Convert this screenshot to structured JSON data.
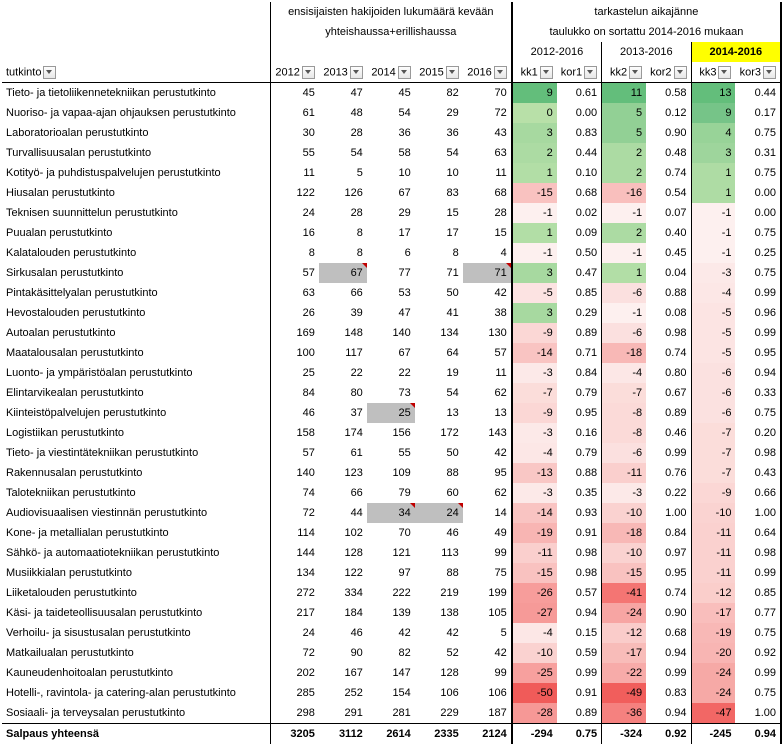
{
  "headerGroup1": "ensisijaisten hakijoiden lukumäärä kevään yhteishaussa+erillishaussa",
  "headerGroup2a": "tarkastelun aikajänne",
  "headerGroup2b": "taulukko on sortattu 2014-2016 mukaan",
  "periods": [
    "2012-2016",
    "2013-2016",
    "2014-2016"
  ],
  "colTutkinto": "tutkinto",
  "years": [
    "2012",
    "2013",
    "2014",
    "2015",
    "2016"
  ],
  "kkLabels": [
    "kk1",
    "kor1",
    "kk2",
    "kor2",
    "kk3",
    "kor3"
  ],
  "totalLabel": "Salpaus yhteensä",
  "totalYears": [
    "3205",
    "3112",
    "2614",
    "2335",
    "2124"
  ],
  "totalKK": [
    "-294",
    "0.75",
    "-324",
    "0.92",
    "-245",
    "0.94"
  ],
  "rows": [
    {
      "name": "Tieto- ja tietoliikennetekniikan perustutkinto",
      "y": [
        "45",
        "47",
        "45",
        "82",
        "70"
      ],
      "kk": [
        "9",
        "0.61",
        "11",
        "0.58",
        "13",
        "0.44"
      ],
      "bg": [
        "#63be7b",
        "",
        "#63be7b",
        "",
        "#63be7b",
        ""
      ]
    },
    {
      "name": "Nuoriso- ja vapaa-ajan ohjauksen perustutkinto",
      "y": [
        "61",
        "48",
        "54",
        "29",
        "72"
      ],
      "kk": [
        "0",
        "0.00",
        "5",
        "0.12",
        "9",
        "0.17"
      ],
      "bg": [
        "#b8e0a8",
        "",
        "#92d095",
        "",
        "#76c488",
        ""
      ]
    },
    {
      "name": "Laboratorioalan perustutkinto",
      "y": [
        "30",
        "28",
        "36",
        "36",
        "43"
      ],
      "kk": [
        "3",
        "0.83",
        "5",
        "0.90",
        "4",
        "0.75"
      ],
      "bg": [
        "#a7d9a0",
        "",
        "#92d095",
        "",
        "#98d398",
        ""
      ]
    },
    {
      "name": "Turvallisuusalan perustutkinto",
      "y": [
        "55",
        "54",
        "58",
        "54",
        "63"
      ],
      "kk": [
        "2",
        "0.44",
        "2",
        "0.48",
        "3",
        "0.31"
      ],
      "bg": [
        "#acdba3",
        "",
        "#acdba3",
        "",
        "#9ed59c",
        ""
      ]
    },
    {
      "name": "Kotityö- ja puhdistuspalvelujen perustutkinto",
      "y": [
        "11",
        "5",
        "10",
        "10",
        "11"
      ],
      "kk": [
        "1",
        "0.10",
        "2",
        "0.74",
        "1",
        "0.75"
      ],
      "bg": [
        "#b2dea6",
        "",
        "#acdba3",
        "",
        "#aedca4",
        ""
      ]
    },
    {
      "name": "Hiusalan perustutkinto",
      "y": [
        "122",
        "126",
        "67",
        "83",
        "68"
      ],
      "kk": [
        "-15",
        "0.68",
        "-16",
        "0.54",
        "1",
        "0.00"
      ],
      "bg": [
        "#f9c2c0",
        "",
        "#f9bfbd",
        "",
        "#aedca4",
        ""
      ]
    },
    {
      "name": "Teknisen suunnittelun perustutkinto",
      "y": [
        "24",
        "28",
        "29",
        "15",
        "28"
      ],
      "kk": [
        "-1",
        "0.02",
        "-1",
        "0.07",
        "-1",
        "0.00"
      ],
      "bg": [
        "#fdf0ef",
        "",
        "#fdf0ef",
        "",
        "#fdf0ef",
        ""
      ]
    },
    {
      "name": "Puualan perustutkinto",
      "y": [
        "16",
        "8",
        "17",
        "17",
        "15"
      ],
      "kk": [
        "1",
        "0.09",
        "2",
        "0.40",
        "-1",
        "0.75"
      ],
      "bg": [
        "#b2dea6",
        "",
        "#acdba3",
        "",
        "#fdf0ef",
        ""
      ]
    },
    {
      "name": "Kalatalouden perustutkinto",
      "y": [
        "8",
        "8",
        "6",
        "8",
        "4"
      ],
      "kk": [
        "-1",
        "0.50",
        "-1",
        "0.45",
        "-1",
        "0.25"
      ],
      "bg": [
        "#fdf0ef",
        "",
        "#fdf0ef",
        "",
        "#fdf0ef",
        ""
      ]
    },
    {
      "name": "Sirkusalan perustutkinto",
      "y": [
        "57",
        "67",
        "77",
        "71",
        "71"
      ],
      "kk": [
        "3",
        "0.47",
        "1",
        "0.04",
        "-3",
        "0.75"
      ],
      "bg": [
        "#a7d9a0",
        "",
        "#b2dea6",
        "",
        "#fce9e8",
        ""
      ],
      "gray": [
        1,
        4
      ]
    },
    {
      "name": "Pintakäsittelyalan perustutkinto",
      "y": [
        "63",
        "66",
        "53",
        "50",
        "42"
      ],
      "kk": [
        "-5",
        "0.85",
        "-6",
        "0.88",
        "-4",
        "0.99"
      ],
      "bg": [
        "#fce3e2",
        "",
        "#fbe0df",
        "",
        "#fce7e6",
        ""
      ]
    },
    {
      "name": "Hevostalouden perustutkinto",
      "y": [
        "26",
        "39",
        "47",
        "41",
        "38"
      ],
      "kk": [
        "3",
        "0.29",
        "-1",
        "0.08",
        "-5",
        "0.96"
      ],
      "bg": [
        "#a7d9a0",
        "",
        "#fdf0ef",
        "",
        "#fce4e3",
        ""
      ]
    },
    {
      "name": "Autoalan perustutkinto",
      "y": [
        "169",
        "148",
        "140",
        "134",
        "130"
      ],
      "kk": [
        "-9",
        "0.89",
        "-6",
        "0.98",
        "-5",
        "0.99"
      ],
      "bg": [
        "#fbd7d5",
        "",
        "#fbe0df",
        "",
        "#fce4e3",
        ""
      ]
    },
    {
      "name": "Maatalousalan perustutkinto",
      "y": [
        "100",
        "117",
        "67",
        "64",
        "57"
      ],
      "kk": [
        "-14",
        "0.71",
        "-18",
        "0.74",
        "-5",
        "0.95"
      ],
      "bg": [
        "#f9c4c2",
        "",
        "#f8b8b6",
        "",
        "#fce4e3",
        ""
      ]
    },
    {
      "name": "Luonto- ja ympäristöalan perustutkinto",
      "y": [
        "25",
        "22",
        "22",
        "19",
        "11"
      ],
      "kk": [
        "-3",
        "0.84",
        "-4",
        "0.80",
        "-6",
        "0.94"
      ],
      "bg": [
        "#fce9e8",
        "",
        "#fce7e6",
        "",
        "#fbe1e0",
        ""
      ]
    },
    {
      "name": "Elintarvikealan perustutkinto",
      "y": [
        "84",
        "80",
        "73",
        "54",
        "62"
      ],
      "kk": [
        "-7",
        "0.79",
        "-7",
        "0.67",
        "-6",
        "0.33"
      ],
      "bg": [
        "#fbddda",
        "",
        "#fbddda",
        "",
        "#fbe1e0",
        ""
      ]
    },
    {
      "name": "Kiinteistöpalvelujen perustutkinto",
      "y": [
        "46",
        "37",
        "25",
        "13",
        "13"
      ],
      "kk": [
        "-9",
        "0.95",
        "-8",
        "0.89",
        "-6",
        "0.75"
      ],
      "bg": [
        "#fbd7d5",
        "",
        "#fbdad8",
        "",
        "#fbe1e0",
        ""
      ],
      "gray": [
        2
      ]
    },
    {
      "name": "Logistiikan perustutkinto",
      "y": [
        "158",
        "174",
        "156",
        "172",
        "143"
      ],
      "kk": [
        "-3",
        "0.16",
        "-8",
        "0.46",
        "-7",
        "0.20"
      ],
      "bg": [
        "#fce9e8",
        "",
        "#fbdad8",
        "",
        "#fbddda",
        ""
      ]
    },
    {
      "name": "Tieto- ja viestintätekniikan perustutkinto",
      "y": [
        "57",
        "61",
        "55",
        "50",
        "42"
      ],
      "kk": [
        "-4",
        "0.79",
        "-6",
        "0.99",
        "-7",
        "0.98"
      ],
      "bg": [
        "#fce7e6",
        "",
        "#fbe0df",
        "",
        "#fbddda",
        ""
      ]
    },
    {
      "name": "Rakennusalan perustutkinto",
      "y": [
        "140",
        "123",
        "109",
        "88",
        "95"
      ],
      "kk": [
        "-13",
        "0.88",
        "-11",
        "0.76",
        "-7",
        "0.43"
      ],
      "bg": [
        "#f9c7c5",
        "",
        "#facfcd",
        "",
        "#fbddda",
        ""
      ]
    },
    {
      "name": "Talotekniikan perustutkinto",
      "y": [
        "74",
        "66",
        "79",
        "60",
        "62"
      ],
      "kk": [
        "-3",
        "0.35",
        "-3",
        "0.22",
        "-9",
        "0.66"
      ],
      "bg": [
        "#fce9e8",
        "",
        "#fce9e8",
        "",
        "#fbd7d5",
        ""
      ]
    },
    {
      "name": "Audiovisuaalisen viestinnän perustutkinto",
      "y": [
        "72",
        "44",
        "34",
        "24",
        "14"
      ],
      "kk": [
        "-14",
        "0.93",
        "-10",
        "1.00",
        "-10",
        "1.00"
      ],
      "bg": [
        "#f9c4c2",
        "",
        "#fad2d0",
        "",
        "#fad3d1",
        ""
      ],
      "gray": [
        2,
        3
      ]
    },
    {
      "name": "Kone- ja metallialan perustutkinto",
      "y": [
        "114",
        "102",
        "70",
        "46",
        "49"
      ],
      "kk": [
        "-19",
        "0.91",
        "-18",
        "0.84",
        "-11",
        "0.64"
      ],
      "bg": [
        "#f8b5b3",
        "",
        "#f8b8b6",
        "",
        "#fad1cf",
        ""
      ]
    },
    {
      "name": "Sähkö- ja automaatiotekniikan perustutkinto",
      "y": [
        "144",
        "128",
        "121",
        "113",
        "99"
      ],
      "kk": [
        "-11",
        "0.98",
        "-10",
        "0.97",
        "-11",
        "0.98"
      ],
      "bg": [
        "#facfcd",
        "",
        "#fad2d0",
        "",
        "#fad1cf",
        ""
      ]
    },
    {
      "name": "Musiikkialan perustutkinto",
      "y": [
        "134",
        "122",
        "97",
        "88",
        "75"
      ],
      "kk": [
        "-15",
        "0.98",
        "-15",
        "0.95",
        "-11",
        "0.99"
      ],
      "bg": [
        "#f9c2c0",
        "",
        "#f9c2c0",
        "",
        "#fad1cf",
        ""
      ]
    },
    {
      "name": "Liiketalouden perustutkinto",
      "y": [
        "272",
        "334",
        "222",
        "219",
        "199"
      ],
      "kk": [
        "-26",
        "0.57",
        "-41",
        "0.74",
        "-12",
        "0.85"
      ],
      "bg": [
        "#f79d9b",
        "",
        "#f47573",
        "",
        "#facecb",
        ""
      ]
    },
    {
      "name": "Käsi- ja taideteollisuusalan perustutkinto",
      "y": [
        "217",
        "184",
        "139",
        "138",
        "105"
      ],
      "kk": [
        "-27",
        "0.94",
        "-24",
        "0.90",
        "-17",
        "0.77"
      ],
      "bg": [
        "#f69a98",
        "",
        "#f7a5a3",
        "",
        "#f9bebc",
        ""
      ]
    },
    {
      "name": "Verhoilu- ja sisustusalan perustutkinto",
      "y": [
        "24",
        "46",
        "42",
        "42",
        "5"
      ],
      "kk": [
        "-4",
        "0.15",
        "-12",
        "0.68",
        "-19",
        "0.75"
      ],
      "bg": [
        "#fce7e6",
        "",
        "#faccca",
        "",
        "#f8b8b6",
        ""
      ]
    },
    {
      "name": "Matkailualan perustutkinto",
      "y": [
        "72",
        "90",
        "82",
        "52",
        "42"
      ],
      "kk": [
        "-10",
        "0.59",
        "-17",
        "0.94",
        "-20",
        "0.92"
      ],
      "bg": [
        "#fad2d0",
        "",
        "#f8bcb9",
        "",
        "#f8b5b3",
        ""
      ]
    },
    {
      "name": "Kauneudenhoitoalan perustutkinto",
      "y": [
        "202",
        "167",
        "147",
        "128",
        "99"
      ],
      "kk": [
        "-25",
        "0.99",
        "-22",
        "0.99",
        "-24",
        "0.99"
      ],
      "bg": [
        "#f7a09e",
        "",
        "#f7aba9",
        "",
        "#f6a9a6",
        ""
      ]
    },
    {
      "name": "Hotelli-, ravintola- ja catering-alan perustutkinto",
      "y": [
        "285",
        "252",
        "154",
        "106",
        "106"
      ],
      "kk": [
        "-50",
        "0.91",
        "-49",
        "0.83",
        "-24",
        "0.75"
      ],
      "bg": [
        "#f05b59",
        "",
        "#f15e5c",
        "",
        "#f6a9a6",
        ""
      ]
    },
    {
      "name": "Sosiaali- ja terveysalan perustutkinto",
      "y": [
        "298",
        "291",
        "281",
        "229",
        "187"
      ],
      "kk": [
        "-28",
        "0.89",
        "-36",
        "0.94",
        "-47",
        "1.00"
      ],
      "bg": [
        "#f69896",
        "",
        "#f5817f",
        "",
        "#f26765",
        ""
      ]
    }
  ]
}
